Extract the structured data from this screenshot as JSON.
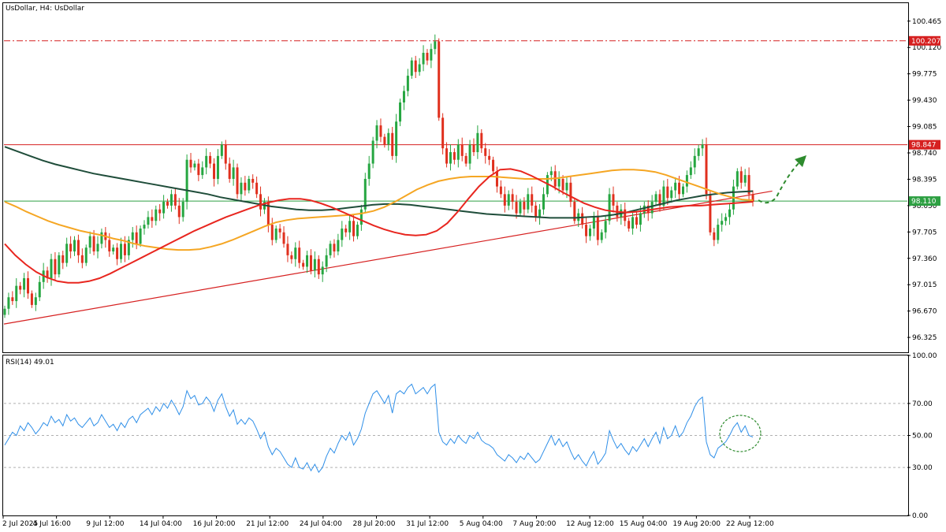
{
  "header": {
    "symbol_label": "UsDollar, H4:  UsDollar",
    "indicator_label": "RSI(14) 49.01"
  },
  "colors": {
    "bull": "#26a641",
    "bear": "#e0301e",
    "ma_fast": "#e8261f",
    "ma_mid": "#f5a623",
    "ma_slow": "#1f4d3a",
    "rsi": "#2f8fe8",
    "resistance": "#d62020",
    "support_level": "#2ea043",
    "trendline": "#d62020",
    "projection_arrow": "#2e8b2e"
  },
  "chart_data": [
    {
      "type": "candlestick",
      "title": "",
      "price_ticks": [
        "100.465",
        "100.120",
        "99.775",
        "99.430",
        "99.085",
        "98.740",
        "98.395",
        "98.050",
        "97.705",
        "97.360",
        "97.015",
        "96.670",
        "96.325"
      ],
      "ylim": [
        96.13,
        100.7
      ],
      "x_ticks": [
        "2 Jul 2025",
        "4 Jul 16:00",
        "9 Jul 12:00",
        "14 Jul 04:00",
        "16 Jul 20:00",
        "21 Jul 12:00",
        "24 Jul 04:00",
        "28 Jul 20:00",
        "31 Jul 12:00",
        "5 Aug 04:00",
        "7 Aug 20:00",
        "12 Aug 12:00",
        "15 Aug 04:00",
        "19 Aug 20:00",
        "22 Aug 12:00"
      ],
      "price_tags": [
        {
          "name": "resistance-100",
          "value": "100.207",
          "price": 100.207,
          "style": "dash-dot"
        },
        {
          "name": "resistance-98",
          "value": "98.847",
          "price": 98.847,
          "style": "solid"
        },
        {
          "name": "current-price",
          "value": "98.110",
          "price": 98.11,
          "style": "solid"
        }
      ],
      "trendline": {
        "from": [
          0,
          96.5
        ],
        "to": [
          198,
          98.24
        ]
      },
      "close": [
        96.7,
        96.85,
        96.8,
        97.0,
        96.95,
        97.1,
        96.9,
        96.75,
        96.85,
        97.05,
        97.2,
        97.1,
        97.35,
        97.15,
        97.4,
        97.3,
        97.55,
        97.45,
        97.6,
        97.4,
        97.3,
        97.5,
        97.65,
        97.45,
        97.55,
        97.7,
        97.6,
        97.45,
        97.5,
        97.35,
        97.55,
        97.4,
        97.6,
        97.7,
        97.55,
        97.75,
        97.8,
        97.9,
        97.85,
        98.0,
        97.95,
        98.1,
        98.05,
        98.2,
        98.05,
        97.9,
        98.1,
        98.65,
        98.55,
        98.6,
        98.45,
        98.55,
        98.7,
        98.6,
        98.4,
        98.7,
        98.85,
        98.6,
        98.4,
        98.55,
        98.2,
        98.35,
        98.25,
        98.4,
        98.35,
        98.2,
        98.0,
        98.1,
        97.8,
        97.6,
        97.75,
        97.7,
        97.55,
        97.4,
        97.35,
        97.5,
        97.3,
        97.25,
        97.4,
        97.2,
        97.35,
        97.15,
        97.25,
        97.4,
        97.55,
        97.45,
        97.6,
        97.75,
        97.7,
        97.85,
        97.65,
        97.8,
        98.0,
        98.4,
        98.6,
        98.9,
        99.1,
        98.95,
        98.85,
        99.0,
        98.7,
        99.15,
        99.4,
        99.55,
        99.75,
        99.95,
        99.8,
        99.9,
        100.05,
        99.95,
        100.1,
        100.2,
        99.2,
        98.8,
        98.6,
        98.75,
        98.65,
        98.85,
        98.7,
        98.6,
        98.85,
        98.75,
        99.0,
        98.8,
        98.7,
        98.65,
        98.5,
        98.3,
        98.2,
        98.05,
        98.2,
        98.1,
        97.95,
        98.1,
        98.0,
        98.2,
        98.05,
        97.9,
        98.0,
        98.2,
        98.45,
        98.5,
        98.3,
        98.4,
        98.25,
        98.35,
        98.1,
        97.85,
        97.95,
        97.8,
        97.65,
        97.75,
        97.9,
        97.6,
        97.7,
        97.85,
        98.2,
        98.05,
        97.9,
        98.0,
        97.85,
        97.75,
        97.9,
        97.8,
        97.95,
        98.05,
        97.95,
        98.1,
        98.2,
        98.05,
        98.3,
        98.15,
        98.25,
        98.35,
        98.2,
        98.3,
        98.45,
        98.55,
        98.7,
        98.8,
        98.85,
        98.2,
        97.7,
        97.6,
        97.8,
        97.85,
        97.9,
        98.0,
        98.3,
        98.5,
        98.35,
        98.45,
        98.2,
        98.1
      ],
      "ma_fast": [
        97.55,
        97.4,
        97.28,
        97.18,
        97.11,
        97.06,
        97.04,
        97.04,
        97.06,
        97.1,
        97.16,
        97.23,
        97.3,
        97.37,
        97.44,
        97.51,
        97.58,
        97.65,
        97.72,
        97.78,
        97.84,
        97.9,
        97.95,
        98.0,
        98.05,
        98.09,
        98.12,
        98.14,
        98.14,
        98.12,
        98.08,
        98.03,
        97.97,
        97.91,
        97.85,
        97.79,
        97.74,
        97.7,
        97.67,
        97.66,
        97.67,
        97.72,
        97.82,
        97.97,
        98.14,
        98.3,
        98.43,
        98.52,
        98.53,
        98.5,
        98.44,
        98.37,
        98.3,
        98.22,
        98.15,
        98.08,
        98.03,
        97.99,
        97.97,
        97.96,
        97.97,
        97.99,
        98.01,
        98.03,
        98.04,
        98.05,
        98.05,
        98.06,
        98.07,
        98.08,
        98.09,
        98.1
      ],
      "ma_mid": [
        98.1,
        98.04,
        97.97,
        97.91,
        97.85,
        97.8,
        97.76,
        97.72,
        97.69,
        97.66,
        97.62,
        97.59,
        97.55,
        97.52,
        97.5,
        97.48,
        97.47,
        97.47,
        97.48,
        97.51,
        97.55,
        97.6,
        97.66,
        97.72,
        97.78,
        97.83,
        97.86,
        97.88,
        97.89,
        97.9,
        97.91,
        97.92,
        97.93,
        97.95,
        97.98,
        98.03,
        98.1,
        98.18,
        98.26,
        98.32,
        98.37,
        98.4,
        98.42,
        98.43,
        98.43,
        98.43,
        98.42,
        98.41,
        98.4,
        98.4,
        98.4,
        98.41,
        98.43,
        98.45,
        98.47,
        98.49,
        98.51,
        98.52,
        98.52,
        98.51,
        98.49,
        98.45,
        98.4,
        98.35,
        98.3,
        98.25,
        98.2,
        98.16,
        98.13,
        98.12
      ],
      "ma_slow": [
        98.82,
        98.76,
        98.7,
        98.64,
        98.59,
        98.55,
        98.51,
        98.47,
        98.44,
        98.41,
        98.38,
        98.35,
        98.32,
        98.29,
        98.26,
        98.23,
        98.2,
        98.16,
        98.13,
        98.1,
        98.07,
        98.04,
        98.02,
        98.0,
        97.99,
        97.99,
        98.0,
        98.02,
        98.04,
        98.06,
        98.07,
        98.07,
        98.06,
        98.04,
        98.02,
        98.0,
        97.98,
        97.96,
        97.94,
        97.93,
        97.92,
        97.91,
        97.9,
        97.89,
        97.89,
        97.89,
        97.9,
        97.91,
        97.93,
        97.96,
        98.0,
        98.04,
        98.08,
        98.12,
        98.15,
        98.18,
        98.2,
        98.22,
        98.23,
        98.24
      ],
      "series": [
        {
          "kind": "sma"
        },
        {
          "kind": "sma"
        },
        {
          "kind": "sma"
        }
      ]
    },
    {
      "type": "line",
      "title": "",
      "ylabel": "",
      "ylim": [
        0,
        100
      ],
      "y_ticks": [
        "100.00",
        "70.00",
        "50.00",
        "30.00",
        "0.00"
      ],
      "levels": [
        70,
        50,
        30
      ],
      "rsi": [
        44,
        48,
        52,
        50,
        56,
        53,
        58,
        55,
        51,
        54,
        58,
        56,
        62,
        58,
        60,
        56,
        63,
        59,
        61,
        57,
        55,
        58,
        61,
        56,
        58,
        63,
        59,
        55,
        57,
        53,
        58,
        55,
        60,
        62,
        58,
        63,
        65,
        67,
        63,
        68,
        65,
        70,
        67,
        72,
        68,
        63,
        68,
        78,
        73,
        75,
        69,
        70,
        74,
        71,
        65,
        72,
        76,
        68,
        62,
        66,
        57,
        60,
        57,
        61,
        59,
        54,
        48,
        52,
        43,
        38,
        42,
        40,
        36,
        32,
        30,
        36,
        30,
        29,
        33,
        28,
        32,
        27,
        30,
        37,
        42,
        39,
        45,
        50,
        47,
        52,
        44,
        48,
        54,
        64,
        70,
        76,
        78,
        74,
        70,
        75,
        64,
        76,
        78,
        76,
        80,
        82,
        76,
        78,
        80,
        76,
        80,
        82,
        52,
        46,
        44,
        48,
        45,
        50,
        47,
        45,
        50,
        48,
        52,
        47,
        45,
        44,
        42,
        38,
        36,
        34,
        38,
        36,
        33,
        37,
        35,
        39,
        36,
        33,
        35,
        40,
        45,
        50,
        44,
        48,
        43,
        46,
        40,
        35,
        38,
        34,
        31,
        36,
        40,
        32,
        35,
        39,
        53,
        47,
        42,
        45,
        41,
        38,
        43,
        40,
        44,
        48,
        43,
        48,
        52,
        45,
        55,
        48,
        50,
        56,
        49,
        52,
        58,
        62,
        68,
        72,
        74,
        46,
        38,
        36,
        42,
        44,
        46,
        50,
        55,
        58,
        52,
        56,
        50,
        49
      ]
    }
  ]
}
